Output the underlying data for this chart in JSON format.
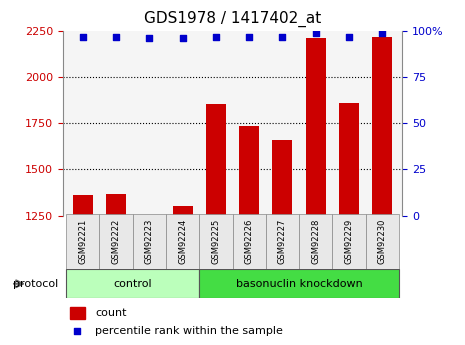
{
  "title": "GDS1978 / 1417402_at",
  "samples": [
    "GSM92221",
    "GSM92222",
    "GSM92223",
    "GSM92224",
    "GSM92225",
    "GSM92226",
    "GSM92227",
    "GSM92228",
    "GSM92229",
    "GSM92230"
  ],
  "bar_values": [
    1360,
    1365,
    1255,
    1300,
    1855,
    1735,
    1660,
    2215,
    1860,
    2220
  ],
  "percentile_values": [
    97,
    97,
    96,
    96,
    97,
    97,
    97,
    99,
    97,
    99
  ],
  "left_ylim": [
    1250,
    2250
  ],
  "right_ylim": [
    0,
    100
  ],
  "left_yticks": [
    1250,
    1500,
    1750,
    2000,
    2250
  ],
  "right_yticks": [
    0,
    25,
    50,
    75,
    100
  ],
  "right_yticklabels": [
    "0",
    "25",
    "50",
    "75",
    "100%"
  ],
  "bar_color": "#cc0000",
  "dot_color": "#0000cc",
  "groups": [
    {
      "label": "control",
      "start": 0,
      "end": 3,
      "color": "#bbffbb"
    },
    {
      "label": "basonuclin knockdown",
      "start": 4,
      "end": 9,
      "color": "#44dd44"
    }
  ],
  "protocol_label": "protocol",
  "legend_items": [
    {
      "color": "#cc0000",
      "label": "count"
    },
    {
      "color": "#0000cc",
      "label": "percentile rank within the sample"
    }
  ],
  "bg_color": "#ffffff",
  "plot_bg_color": "#f5f5f5",
  "title_fontsize": 11,
  "tick_fontsize": 8,
  "sample_fontsize": 6
}
